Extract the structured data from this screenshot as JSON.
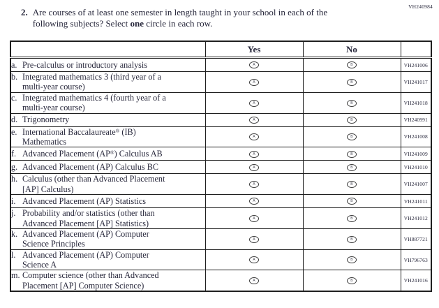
{
  "page": {
    "form_code": "VH240984"
  },
  "question": {
    "number": "2.",
    "parts": {
      "p0": "Are courses of at least one semester in length taught in your school in each of the\nfollowing subjects? Select ",
      "p1": "one",
      "p2": " circle in each row."
    }
  },
  "options": {
    "yes_letter": "A",
    "no_letter": "B"
  },
  "table": {
    "header": {
      "yes": "Yes",
      "no": "No"
    },
    "rows": [
      {
        "letter": "a.",
        "label": "Pre-calculus or introductory analysis",
        "code": "VH241006"
      },
      {
        "letter": "b.",
        "label": "Integrated mathematics 3 (third year of a\nmulti-year course)",
        "code": "VH241017"
      },
      {
        "letter": "c.",
        "label": "Integrated mathematics 4 (fourth year of a\nmulti-year course)",
        "code": "VH241018"
      },
      {
        "letter": "d.",
        "label": "Trigonometry",
        "code": "VH240991"
      },
      {
        "letter": "e.",
        "label": "International Baccalaureate® (IB)\nMathematics",
        "code": "VH241008"
      },
      {
        "letter": "f.",
        "label": "Advanced Placement (AP®) Calculus AB",
        "code": "VH241009"
      },
      {
        "letter": "g.",
        "label": "Advanced Placement (AP) Calculus BC",
        "code": "VH241010"
      },
      {
        "letter": "h.",
        "label": "Calculus (other than Advanced Placement\n[AP] Calculus)",
        "code": "VH241007"
      },
      {
        "letter": "i.",
        "label": "Advanced Placement (AP) Statistics",
        "code": "VH241011"
      },
      {
        "letter": "j.",
        "label": "Probability and/or statistics (other than\nAdvanced Placement [AP] Statistics)",
        "code": "VH241012"
      },
      {
        "letter": "k.",
        "label": "Advanced Placement (AP) Computer\nScience Principles",
        "code": "VH887721"
      },
      {
        "letter": "l.",
        "label": "Advanced Placement (AP) Computer\nScience A",
        "code": "VH796763"
      },
      {
        "letter": "m.",
        "label": "Computer science (other than Advanced\nPlacement [AP] Computer Science)",
        "code": "VH241016"
      }
    ]
  }
}
